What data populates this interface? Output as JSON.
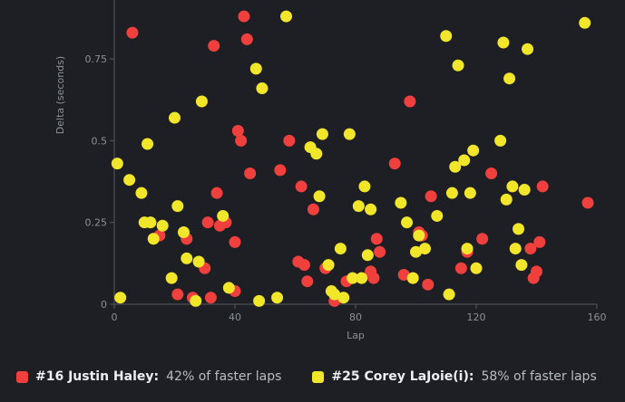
{
  "chart_data": {
    "type": "scatter",
    "xlabel": "Lap",
    "ylabel": "Delta (seconds)",
    "xlim": [
      0,
      160
    ],
    "ylim": [
      0,
      0.93
    ],
    "xticks": [
      0,
      40,
      80,
      120,
      160
    ],
    "yticks": [
      0,
      0.25,
      0.5,
      0.75
    ],
    "ytick_labels": [
      "0",
      "0.25",
      "0.5",
      "0.75"
    ],
    "grid": false,
    "legend_position": "bottom-left",
    "series": [
      {
        "name": "#16 Justin Haley",
        "color": "#f0403e",
        "stat_text": "42% of faster laps",
        "points": [
          [
            6,
            0.83
          ],
          [
            15,
            0.21
          ],
          [
            21,
            0.03
          ],
          [
            24,
            0.2
          ],
          [
            26,
            0.02
          ],
          [
            30,
            0.11
          ],
          [
            31,
            0.25
          ],
          [
            32,
            0.02
          ],
          [
            33,
            0.79
          ],
          [
            34,
            0.34
          ],
          [
            35,
            0.24
          ],
          [
            37,
            0.25
          ],
          [
            40,
            0.04
          ],
          [
            40,
            0.19
          ],
          [
            41,
            0.53
          ],
          [
            42,
            0.5
          ],
          [
            43,
            0.88
          ],
          [
            44,
            0.81
          ],
          [
            45,
            0.4
          ],
          [
            55,
            0.41
          ],
          [
            58,
            0.5
          ],
          [
            61,
            0.13
          ],
          [
            62,
            0.36
          ],
          [
            63,
            0.12
          ],
          [
            64,
            0.07
          ],
          [
            66,
            0.29
          ],
          [
            70,
            0.11
          ],
          [
            73,
            0.01
          ],
          [
            77,
            0.07
          ],
          [
            85,
            0.1
          ],
          [
            86,
            0.08
          ],
          [
            87,
            0.2
          ],
          [
            88,
            0.16
          ],
          [
            93,
            0.43
          ],
          [
            96,
            0.09
          ],
          [
            98,
            0.62
          ],
          [
            101,
            0.22
          ],
          [
            102,
            0.21
          ],
          [
            104,
            0.06
          ],
          [
            105,
            0.33
          ],
          [
            115,
            0.11
          ],
          [
            117,
            0.16
          ],
          [
            122,
            0.2
          ],
          [
            125,
            0.4
          ],
          [
            138,
            0.17
          ],
          [
            139,
            0.08
          ],
          [
            140,
            0.1
          ],
          [
            141,
            0.19
          ],
          [
            142,
            0.36
          ],
          [
            157,
            0.31
          ]
        ]
      },
      {
        "name": "#25 Corey LaJoie(i)",
        "color": "#f2e62a",
        "stat_text": "58% of faster laps",
        "points": [
          [
            1,
            0.43
          ],
          [
            2,
            0.02
          ],
          [
            5,
            0.38
          ],
          [
            9,
            0.34
          ],
          [
            10,
            0.25
          ],
          [
            11,
            0.49
          ],
          [
            12,
            0.25
          ],
          [
            13,
            0.2
          ],
          [
            16,
            0.24
          ],
          [
            19,
            0.08
          ],
          [
            20,
            0.57
          ],
          [
            21,
            0.3
          ],
          [
            23,
            0.22
          ],
          [
            24,
            0.14
          ],
          [
            27,
            0.01
          ],
          [
            28,
            0.13
          ],
          [
            29,
            0.62
          ],
          [
            36,
            0.27
          ],
          [
            38,
            0.05
          ],
          [
            47,
            0.72
          ],
          [
            48,
            0.01
          ],
          [
            49,
            0.66
          ],
          [
            54,
            0.02
          ],
          [
            57,
            0.88
          ],
          [
            65,
            0.48
          ],
          [
            67,
            0.46
          ],
          [
            68,
            0.33
          ],
          [
            69,
            0.52
          ],
          [
            71,
            0.12
          ],
          [
            72,
            0.04
          ],
          [
            73,
            0.03
          ],
          [
            75,
            0.17
          ],
          [
            76,
            0.02
          ],
          [
            78,
            0.52
          ],
          [
            79,
            0.08
          ],
          [
            81,
            0.3
          ],
          [
            82,
            0.08
          ],
          [
            83,
            0.36
          ],
          [
            84,
            0.15
          ],
          [
            85,
            0.29
          ],
          [
            95,
            0.31
          ],
          [
            97,
            0.25
          ],
          [
            99,
            0.08
          ],
          [
            100,
            0.16
          ],
          [
            101,
            0.21
          ],
          [
            103,
            0.17
          ],
          [
            107,
            0.27
          ],
          [
            110,
            0.82
          ],
          [
            111,
            0.03
          ],
          [
            112,
            0.34
          ],
          [
            113,
            0.42
          ],
          [
            114,
            0.73
          ],
          [
            116,
            0.44
          ],
          [
            117,
            0.17
          ],
          [
            118,
            0.34
          ],
          [
            119,
            0.47
          ],
          [
            120,
            0.11
          ],
          [
            128,
            0.5
          ],
          [
            129,
            0.8
          ],
          [
            130,
            0.32
          ],
          [
            131,
            0.69
          ],
          [
            132,
            0.36
          ],
          [
            133,
            0.17
          ],
          [
            134,
            0.23
          ],
          [
            135,
            0.12
          ],
          [
            136,
            0.35
          ],
          [
            137,
            0.78
          ],
          [
            156,
            0.86
          ]
        ]
      }
    ]
  }
}
